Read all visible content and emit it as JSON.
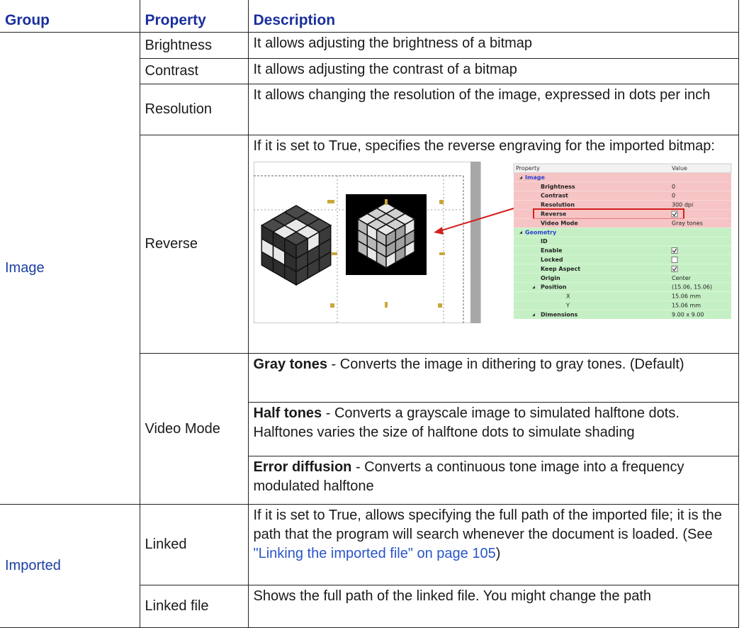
{
  "header": {
    "group": "Group",
    "property": "Property",
    "description": "Description"
  },
  "groups": [
    {
      "name": "Image",
      "rows": [
        {
          "property": "Brightness",
          "description": "It allows adjusting the brightness of a bitmap"
        },
        {
          "property": "Contrast",
          "description": "It allows adjusting the contrast of a bitmap"
        },
        {
          "property": "Resolution",
          "description": "It allows changing the resolution of the image, expressed in dots per inch"
        },
        {
          "property": "Reverse",
          "description": "If it is set to True, specifies the reverse engraving for the imported bitmap:"
        },
        {
          "property": "Video Mode",
          "options": [
            {
              "term": "Gray tones",
              "text": " - Converts the image in dithering to gray tones. (Default)"
            },
            {
              "term": "Half tones",
              "text": " - Converts a grayscale image to simulated halftone dots. Halftones varies the size of halftone dots to simulate shading"
            },
            {
              "term": "Error diffusion",
              "text": " - Converts a continuous tone image into a frequency modulated halftone"
            }
          ]
        }
      ]
    },
    {
      "name": "Imported",
      "rows": [
        {
          "property": "Linked",
          "description": "If it is set to True, allows specifying the full path of the imported file; it is the path that the program will search whenever the document is loaded. (See ",
          "link": "\"Linking the imported file\" on page 105",
          "after": ")"
        },
        {
          "property": "Linked file",
          "description": "Shows the full path of the linked file. You might change the path"
        }
      ]
    }
  ],
  "screenshot": {
    "header": [
      "Property",
      "Value"
    ],
    "rows": [
      {
        "name": "Image",
        "section": true,
        "level": 0
      },
      {
        "name": "Brightness",
        "value": "0",
        "level": 1
      },
      {
        "name": "Contrast",
        "value": "0",
        "level": 1
      },
      {
        "name": "Resolution",
        "value": "300 dpi",
        "level": 1
      },
      {
        "name": "Reverse",
        "checked": true,
        "highlight": true,
        "level": 1
      },
      {
        "name": "Video Mode",
        "value": "Gray tones",
        "level": 1
      },
      {
        "name": "Geometry",
        "section": true,
        "level": 0
      },
      {
        "name": "ID",
        "level": 1
      },
      {
        "name": "Enable",
        "checked": true,
        "level": 1
      },
      {
        "name": "Locked",
        "checked": false,
        "level": 1
      },
      {
        "name": "Keep Aspect",
        "checked": true,
        "level": 1
      },
      {
        "name": "Origin",
        "value": "Center",
        "level": 1
      },
      {
        "name": "Position",
        "value": "(15.06, 15.06)",
        "level": 1,
        "expander": true
      },
      {
        "name": "X",
        "value": "15.06 mm",
        "level": 2
      },
      {
        "name": "Y",
        "value": "15.06 mm",
        "level": 2
      },
      {
        "name": "Dimensions",
        "value": "9.00 x 9.00",
        "level": 1,
        "expander": true
      }
    ]
  }
}
